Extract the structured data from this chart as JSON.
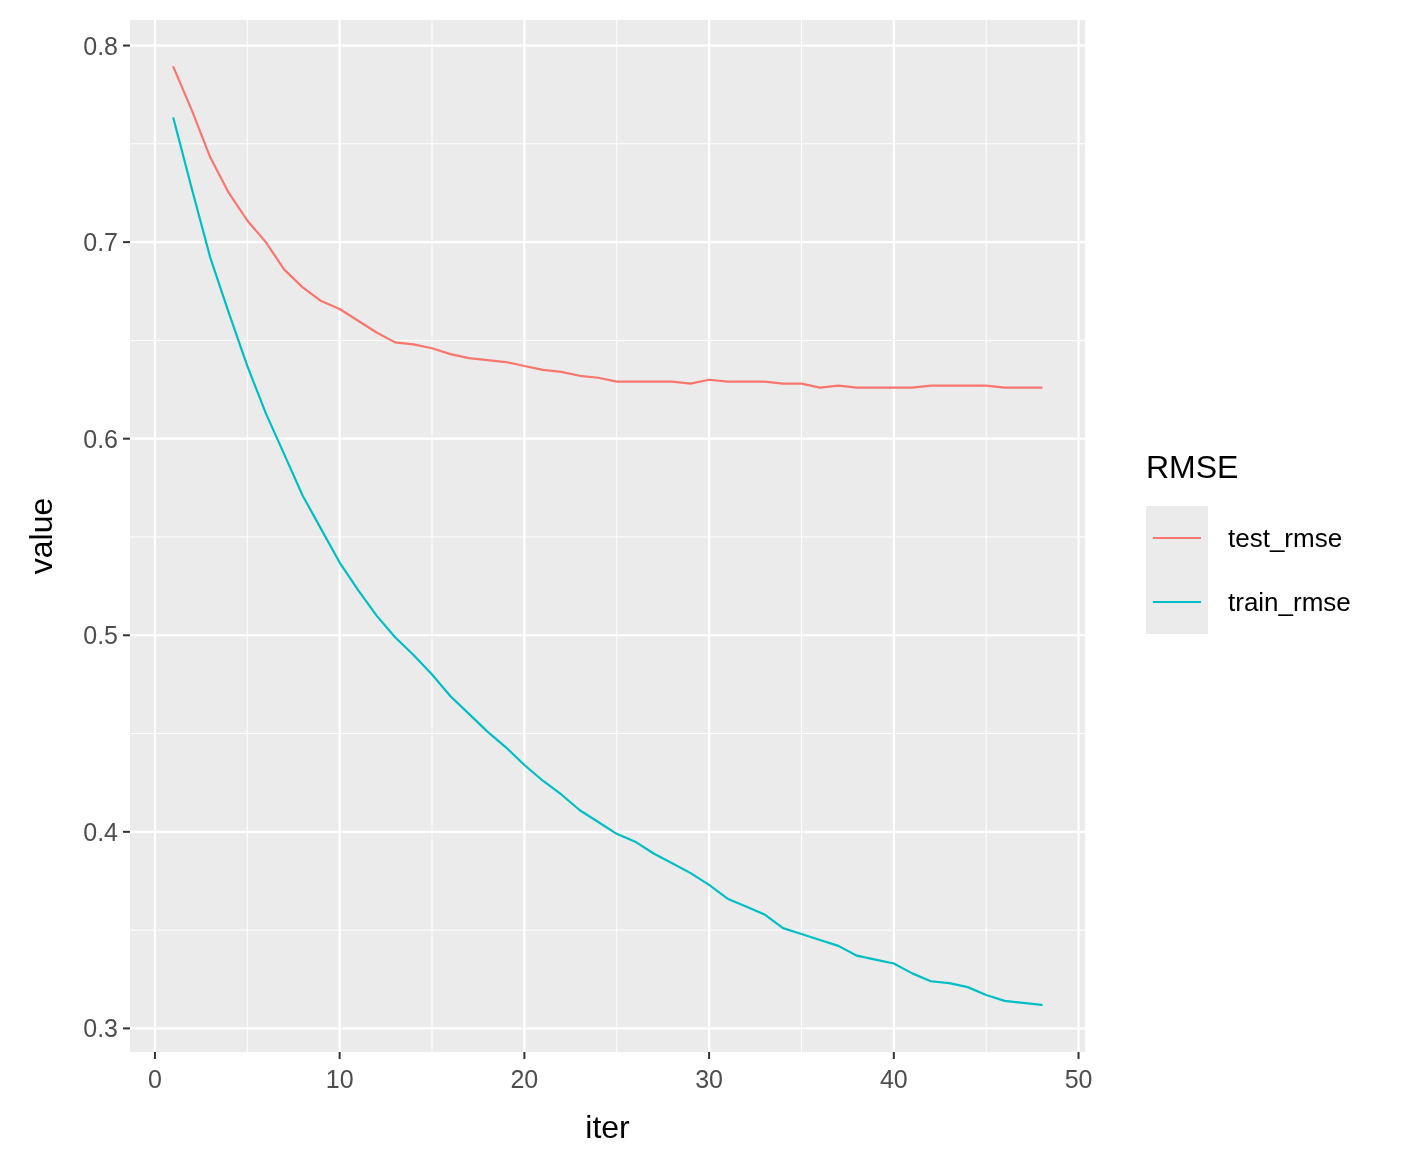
{
  "chart_data": {
    "type": "line",
    "xlabel": "iter",
    "ylabel": "value",
    "legend_title": "RMSE",
    "x": [
      1,
      2,
      3,
      4,
      5,
      6,
      7,
      8,
      9,
      10,
      11,
      12,
      13,
      14,
      15,
      16,
      17,
      18,
      19,
      20,
      21,
      22,
      23,
      24,
      25,
      26,
      27,
      28,
      29,
      30,
      31,
      32,
      33,
      34,
      35,
      36,
      37,
      38,
      39,
      40,
      41,
      42,
      43,
      44,
      45,
      46,
      47,
      48
    ],
    "series": [
      {
        "name": "test_rmse",
        "color": "#f8766d",
        "values": [
          0.789,
          0.767,
          0.743,
          0.725,
          0.711,
          0.7,
          0.686,
          0.677,
          0.67,
          0.666,
          0.66,
          0.654,
          0.649,
          0.648,
          0.646,
          0.643,
          0.641,
          0.64,
          0.639,
          0.637,
          0.635,
          0.634,
          0.632,
          0.631,
          0.629,
          0.629,
          0.629,
          0.629,
          0.628,
          0.63,
          0.629,
          0.629,
          0.629,
          0.628,
          0.628,
          0.626,
          0.627,
          0.626,
          0.626,
          0.626,
          0.626,
          0.627,
          0.627,
          0.627,
          0.627,
          0.626,
          0.626,
          0.626
        ]
      },
      {
        "name": "train_rmse",
        "color": "#00bfc4",
        "values": [
          0.763,
          0.727,
          0.692,
          0.664,
          0.637,
          0.613,
          0.592,
          0.571,
          0.554,
          0.537,
          0.523,
          0.51,
          0.499,
          0.49,
          0.48,
          0.469,
          0.46,
          0.451,
          0.443,
          0.434,
          0.426,
          0.419,
          0.411,
          0.405,
          0.399,
          0.395,
          0.389,
          0.384,
          0.379,
          0.373,
          0.366,
          0.362,
          0.358,
          0.351,
          0.348,
          0.345,
          0.342,
          0.337,
          0.335,
          0.333,
          0.328,
          0.324,
          0.323,
          0.321,
          0.317,
          0.314,
          0.313,
          0.312
        ]
      }
    ],
    "xlim": [
      -1.35,
      50.35
    ],
    "ylim": [
      0.288,
      0.813
    ],
    "xticks": [
      0,
      10,
      20,
      30,
      40,
      50
    ],
    "yticks": [
      {
        "value": 0.3,
        "label": "0.3"
      },
      {
        "value": 0.4,
        "label": "0.4"
      },
      {
        "value": 0.5,
        "label": "0.5"
      },
      {
        "value": 0.6,
        "label": "0.6"
      },
      {
        "value": 0.7,
        "label": "0.7"
      },
      {
        "value": 0.8,
        "label": "0.8"
      }
    ],
    "grid": true,
    "legend": "right"
  }
}
